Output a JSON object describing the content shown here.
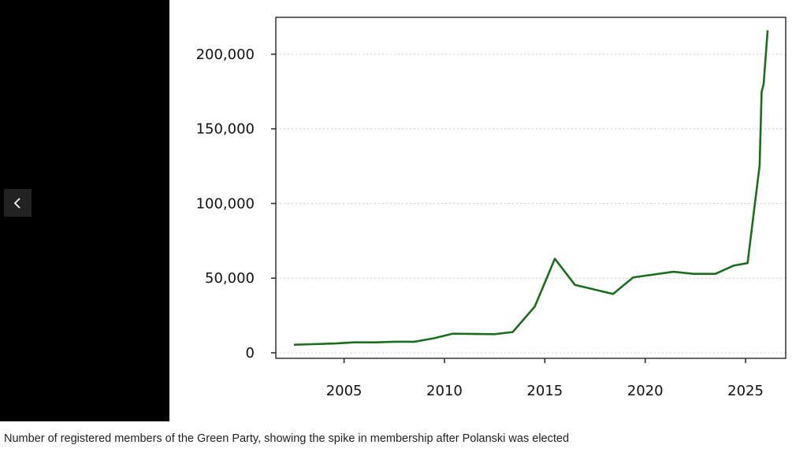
{
  "gallery": {
    "prev_icon": "chevron-left-icon"
  },
  "caption": "Number of registered members of the Green Party, showing the spike in membership after Polanski was elected",
  "chart_data": {
    "type": "line",
    "title": "",
    "xlabel": "",
    "ylabel": "",
    "xlim": [
      2001.6,
      2027.0
    ],
    "ylim": [
      -3700,
      224700
    ],
    "grid": "horizontal dotted",
    "line_color": "#1b6e1b",
    "x_ticks": [
      2005,
      2010,
      2015,
      2020,
      2025
    ],
    "x_tick_labels": [
      "2005",
      "2010",
      "2015",
      "2020",
      "2025"
    ],
    "y_ticks": [
      0,
      50000,
      100000,
      150000,
      200000
    ],
    "y_tick_labels": [
      "0",
      "50,000",
      "100,000",
      "150,000",
      "200,000"
    ],
    "series": [
      {
        "x": [
          2002.5,
          2004.6,
          2005.5,
          2006.6,
          2007.5,
          2008.5,
          2009.5,
          2010.4,
          2012.5,
          2013.4,
          2014.5,
          2015.5,
          2016.5,
          2018.4,
          2019.4,
          2021.4,
          2022.4,
          2023.5,
          2024.4,
          2025.1,
          2025.7,
          2025.8,
          2025.9,
          2026.1
        ],
        "y": [
          5400,
          6300,
          7000,
          7000,
          7400,
          7400,
          9800,
          12800,
          12500,
          13900,
          31000,
          63000,
          45500,
          39400,
          50500,
          54300,
          52900,
          52900,
          58400,
          60100,
          125500,
          174700,
          180000,
          216000
        ]
      }
    ]
  }
}
